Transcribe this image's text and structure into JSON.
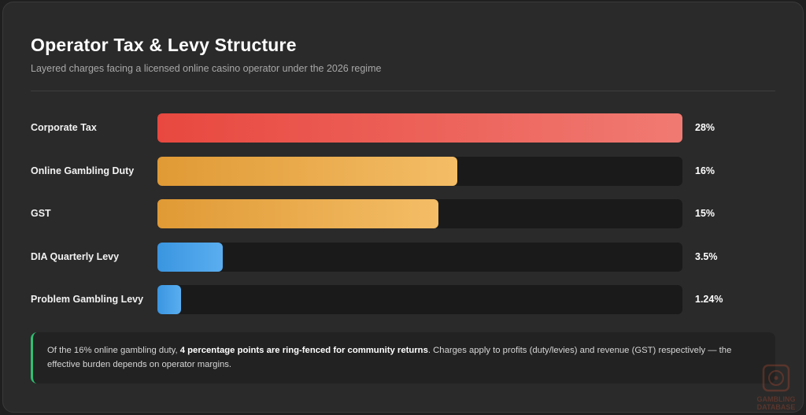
{
  "header": {
    "title": "Operator Tax & Levy Structure",
    "subtitle": "Layered charges facing a licensed online casino operator under the 2026 regime"
  },
  "chart_data": {
    "type": "bar",
    "orientation": "horizontal",
    "categories": [
      "Corporate Tax",
      "Online Gambling Duty",
      "GST",
      "DIA Quarterly Levy",
      "Problem Gambling Levy"
    ],
    "values": [
      28,
      16,
      15,
      3.5,
      1.24
    ],
    "value_labels": [
      "28%",
      "16%",
      "15%",
      "3.5%",
      "1.24%"
    ],
    "xlim": [
      0,
      28
    ],
    "colors": {
      "red": [
        "#e8483f",
        "#f07a72"
      ],
      "orange": [
        "#e09a35",
        "#f4bd66"
      ],
      "blue": [
        "#3a95e0",
        "#5aaef0"
      ]
    },
    "bar_colors": [
      "red",
      "orange",
      "orange",
      "blue",
      "blue"
    ],
    "grid": false,
    "legend": "none"
  },
  "note": {
    "prefix": "Of the 16% online gambling duty, ",
    "bold": "4 percentage points are ring-fenced for community returns",
    "suffix": ". Charges apply to profits (duty/levies) and revenue (GST) respectively — the effective burden depends on operator margins.",
    "accent": "#2fbf71"
  },
  "watermark": {
    "line1": "GAMBLING",
    "line2": "DATABASE"
  }
}
